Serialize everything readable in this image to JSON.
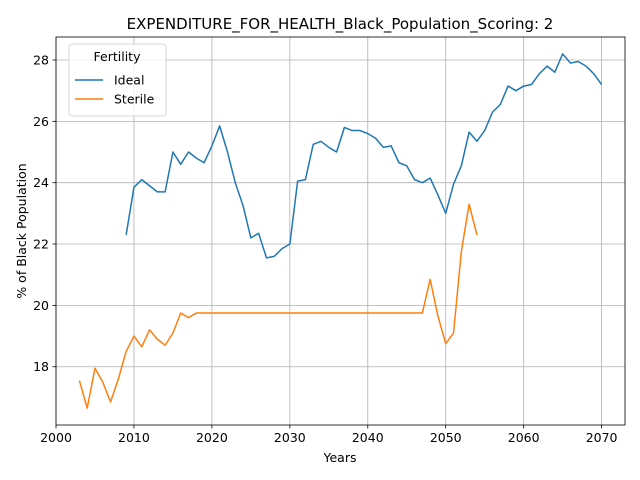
{
  "chart_data": {
    "type": "line",
    "title": "EXPENDITURE_FOR_HEALTH_Black_Population_Scoring: 2",
    "xlabel": "Years",
    "ylabel": "% of Black Population",
    "xlim": [
      2000,
      2073
    ],
    "ylim": [
      16.1,
      28.75
    ],
    "xticks": [
      2000,
      2010,
      2020,
      2030,
      2040,
      2050,
      2060,
      2070
    ],
    "yticks": [
      18,
      20,
      22,
      24,
      26,
      28
    ],
    "grid": true,
    "legend": {
      "title": "Fertility",
      "placement": "upper-left"
    },
    "series": [
      {
        "name": "Ideal",
        "color": "#1f77b4",
        "x": [
          2009,
          2010,
          2011,
          2012,
          2013,
          2014,
          2015,
          2016,
          2017,
          2018,
          2019,
          2020,
          2021,
          2022,
          2023,
          2024,
          2025,
          2026,
          2027,
          2028,
          2029,
          2030,
          2031,
          2032,
          2033,
          2034,
          2035,
          2036,
          2037,
          2038,
          2039,
          2040,
          2041,
          2042,
          2043,
          2044,
          2045,
          2046,
          2047,
          2048,
          2049,
          2050,
          2051,
          2052,
          2053,
          2054,
          2055,
          2056,
          2057,
          2058,
          2059,
          2060,
          2061,
          2062,
          2063,
          2064,
          2065,
          2066,
          2067,
          2068,
          2069,
          2070
        ],
        "y": [
          22.3,
          23.85,
          24.1,
          23.9,
          23.7,
          23.7,
          25.0,
          24.6,
          25.0,
          24.8,
          24.65,
          25.2,
          25.85,
          25.0,
          24.0,
          23.25,
          22.2,
          22.35,
          21.55,
          21.6,
          21.85,
          22.0,
          24.05,
          24.1,
          25.25,
          25.35,
          25.15,
          25.0,
          25.8,
          25.7,
          25.7,
          25.6,
          25.45,
          25.15,
          25.2,
          24.65,
          24.55,
          24.1,
          24.0,
          24.15,
          23.6,
          23.0,
          23.95,
          24.55,
          25.65,
          25.35,
          25.7,
          26.3,
          26.55,
          27.15,
          27.0,
          27.15,
          27.2,
          27.55,
          27.8,
          27.6,
          28.2,
          27.9,
          27.95,
          27.8,
          27.55,
          27.2
        ]
      },
      {
        "name": "Sterile",
        "color": "#ff7f0e",
        "x": [
          2003,
          2004,
          2005,
          2006,
          2007,
          2008,
          2009,
          2010,
          2011,
          2012,
          2013,
          2014,
          2015,
          2016,
          2017,
          2018,
          2019,
          2020,
          2021,
          2022,
          2023,
          2024,
          2025,
          2026,
          2027,
          2028,
          2029,
          2030,
          2031,
          2032,
          2033,
          2034,
          2035,
          2036,
          2037,
          2038,
          2039,
          2040,
          2041,
          2042,
          2043,
          2044,
          2045,
          2046,
          2047,
          2048,
          2049,
          2050,
          2051,
          2052,
          2053,
          2054
        ],
        "y": [
          17.55,
          16.65,
          17.95,
          17.5,
          16.85,
          17.6,
          18.5,
          19.0,
          18.65,
          19.2,
          18.9,
          18.7,
          19.1,
          19.75,
          19.6,
          19.75,
          19.75,
          19.75,
          19.75,
          19.75,
          19.75,
          19.75,
          19.75,
          19.75,
          19.75,
          19.75,
          19.75,
          19.75,
          19.75,
          19.75,
          19.75,
          19.75,
          19.75,
          19.75,
          19.75,
          19.75,
          19.75,
          19.75,
          19.75,
          19.75,
          19.75,
          19.75,
          19.75,
          19.75,
          19.75,
          20.85,
          19.65,
          18.75,
          19.1,
          21.75,
          23.3,
          22.3
        ]
      }
    ]
  }
}
